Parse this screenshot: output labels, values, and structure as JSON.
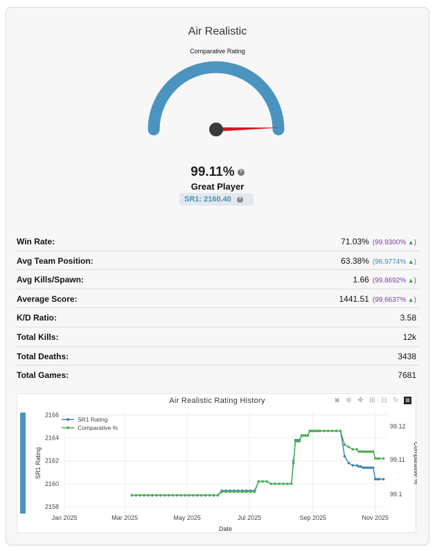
{
  "header": {
    "title": "Air Realistic",
    "subtitle": "Comparative Rating"
  },
  "gauge": {
    "value_fraction": 0.9911,
    "percentage_text": "99.11%",
    "rank_label": "Great Player",
    "sr_label": "SR1: 2160.40",
    "arc_color": "#4a94bf",
    "needle_color": "#d9161c"
  },
  "stats": [
    {
      "label": "Win Rate:",
      "value": "71.03%",
      "pct": "(99.9300%",
      "pct_color": "purple",
      "has_pct": true
    },
    {
      "label": "Avg Team Position:",
      "value": "63.38%",
      "pct": "(96.9774%",
      "pct_color": "blue",
      "has_pct": true
    },
    {
      "label": "Avg Kills/Spawn:",
      "value": "1.66",
      "pct": "(99.8692%",
      "pct_color": "purple",
      "has_pct": true
    },
    {
      "label": "Average Score:",
      "value": "1441.51",
      "pct": "(99.6637%",
      "pct_color": "purple",
      "has_pct": true
    },
    {
      "label": "K/D Ratio:",
      "value": "3.58",
      "has_pct": false
    },
    {
      "label": "Total Kills:",
      "value": "12k",
      "has_pct": false
    },
    {
      "label": "Total Deaths:",
      "value": "3438",
      "has_pct": false
    },
    {
      "label": "Total Games:",
      "value": "7681",
      "has_pct": false
    }
  ],
  "chart_data": {
    "type": "line",
    "title": "Air Realistic Rating History",
    "xlabel": "Date",
    "ylabel": "SR1 Rating",
    "y2label": "Comparative %",
    "x_ticks": [
      "Jan 2025",
      "Mar 2025",
      "May 2025",
      "Jul 2025",
      "Sep 2025",
      "Nov 2025"
    ],
    "x_range_days": [
      0,
      315
    ],
    "x_tick_days": [
      0,
      59,
      120,
      181,
      243,
      304
    ],
    "y_ticks": [
      2158,
      2160,
      2162,
      2164,
      2166
    ],
    "ylim": [
      2157.4,
      2166.2
    ],
    "y2_ticks": [
      "99.1",
      "99.11",
      "99.12"
    ],
    "y2_tick_values": [
      2159.1,
      2162.1,
      2165.0
    ],
    "legend": [
      "SR1 Rating",
      "Comparative %"
    ],
    "series": [
      {
        "name": "SR1 Rating",
        "color": "#3d86b4",
        "x": [
          66,
          70,
          74,
          78,
          82,
          86,
          90,
          94,
          98,
          102,
          106,
          110,
          114,
          118,
          122,
          126,
          130,
          134,
          138,
          142,
          146,
          150,
          154,
          158,
          162,
          166,
          170,
          174,
          178,
          182,
          186,
          190,
          194,
          198,
          202,
          206,
          210,
          214,
          218,
          222,
          224,
          226,
          228,
          230,
          232,
          234,
          236,
          238,
          240,
          242,
          244,
          246,
          248,
          250,
          254,
          258,
          262,
          266,
          270,
          274,
          278,
          282,
          286,
          288,
          290,
          292,
          294,
          296,
          298,
          300,
          302,
          304,
          306,
          308,
          312
        ],
        "y": [
          2159.0,
          2159.0,
          2159.0,
          2159.0,
          2159.0,
          2159.0,
          2159.0,
          2159.0,
          2159.0,
          2159.0,
          2159.0,
          2159.0,
          2159.0,
          2159.0,
          2159.0,
          2159.0,
          2159.0,
          2159.0,
          2159.0,
          2159.0,
          2159.0,
          2159.0,
          2159.4,
          2159.4,
          2159.4,
          2159.4,
          2159.4,
          2159.4,
          2159.4,
          2159.4,
          2159.4,
          2160.2,
          2160.2,
          2160.2,
          2160.0,
          2160.0,
          2160.0,
          2160.0,
          2160.0,
          2160.0,
          2161.8,
          2163.8,
          2163.8,
          2163.8,
          2164.2,
          2164.2,
          2164.2,
          2164.2,
          2164.6,
          2164.6,
          2164.6,
          2164.6,
          2164.6,
          2164.6,
          2164.6,
          2164.6,
          2164.6,
          2164.6,
          2164.6,
          2162.4,
          2161.8,
          2161.6,
          2161.6,
          2161.5,
          2161.5,
          2161.4,
          2161.4,
          2161.4,
          2161.4,
          2161.4,
          2161.4,
          2160.4,
          2160.4,
          2160.4,
          2160.4
        ]
      },
      {
        "name": "Comparative %",
        "color": "#4caf50",
        "x": [
          66,
          70,
          74,
          78,
          82,
          86,
          90,
          94,
          98,
          102,
          106,
          110,
          114,
          118,
          122,
          126,
          130,
          134,
          138,
          142,
          146,
          150,
          154,
          158,
          162,
          166,
          170,
          174,
          178,
          182,
          186,
          190,
          194,
          198,
          202,
          206,
          210,
          214,
          218,
          222,
          224,
          226,
          228,
          230,
          232,
          234,
          236,
          238,
          240,
          242,
          244,
          246,
          248,
          250,
          254,
          258,
          262,
          266,
          270,
          274,
          278,
          282,
          286,
          288,
          290,
          292,
          294,
          296,
          298,
          300,
          302,
          304,
          306,
          308,
          312
        ],
        "y": [
          2159.0,
          2159.0,
          2159.0,
          2159.0,
          2159.0,
          2159.0,
          2159.0,
          2159.0,
          2159.0,
          2159.0,
          2159.0,
          2159.0,
          2159.0,
          2159.0,
          2159.0,
          2159.0,
          2159.0,
          2159.0,
          2159.0,
          2159.0,
          2159.0,
          2159.0,
          2159.3,
          2159.3,
          2159.3,
          2159.3,
          2159.3,
          2159.3,
          2159.3,
          2159.3,
          2159.3,
          2160.2,
          2160.2,
          2160.2,
          2160.0,
          2160.0,
          2160.0,
          2160.0,
          2160.0,
          2160.0,
          2162.0,
          2163.7,
          2163.7,
          2163.7,
          2164.2,
          2164.2,
          2164.2,
          2164.2,
          2164.6,
          2164.6,
          2164.6,
          2164.6,
          2164.6,
          2164.6,
          2164.6,
          2164.6,
          2164.6,
          2164.6,
          2164.6,
          2163.4,
          2163.2,
          2163.0,
          2163.0,
          2162.8,
          2162.8,
          2162.8,
          2162.8,
          2162.8,
          2162.8,
          2162.8,
          2162.8,
          2162.2,
          2162.2,
          2162.2,
          2162.2
        ]
      }
    ]
  }
}
